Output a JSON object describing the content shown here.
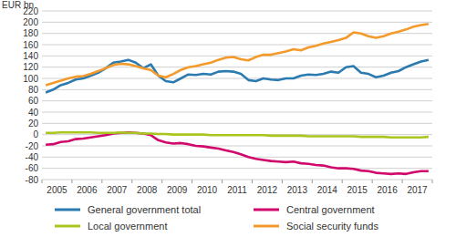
{
  "chart_data": {
    "type": "line",
    "y_label": "EUR bn",
    "categories": [
      null,
      "2005",
      null,
      null,
      null,
      "2006",
      null,
      null,
      null,
      "2007",
      null,
      null,
      null,
      "2008",
      null,
      null,
      null,
      "2009",
      null,
      null,
      null,
      "2010",
      null,
      null,
      null,
      "2011",
      null,
      null,
      null,
      "2012",
      null,
      null,
      null,
      "2013",
      null,
      null,
      null,
      "2014",
      null,
      null,
      null,
      "2015",
      null,
      null,
      null,
      "2016",
      null,
      null,
      null,
      "2017",
      null,
      null
    ],
    "series": [
      {
        "name": "General government total",
        "color": "#2b7bb0",
        "values": [
          75,
          80,
          88,
          92,
          98,
          100,
          105,
          110,
          118,
          128,
          130,
          133,
          128,
          118,
          125,
          105,
          95,
          93,
          100,
          107,
          106,
          108,
          107,
          112,
          113,
          112,
          108,
          97,
          95,
          100,
          98,
          97,
          100,
          100,
          105,
          107,
          106,
          108,
          112,
          110,
          120,
          122,
          110,
          108,
          102,
          105,
          110,
          113,
          120,
          125,
          130,
          133
        ]
      },
      {
        "name": "Central government",
        "color": "#d1086b",
        "values": [
          -18,
          -17,
          -13,
          -12,
          -8,
          -7,
          -5,
          -3,
          -1,
          2,
          3,
          4,
          3,
          2,
          -1,
          -10,
          -14,
          -16,
          -15,
          -17,
          -20,
          -21,
          -23,
          -25,
          -28,
          -31,
          -35,
          -40,
          -43,
          -45,
          -47,
          -48,
          -49,
          -48,
          -51,
          -52,
          -54,
          -55,
          -58,
          -60,
          -60,
          -61,
          -64,
          -65,
          -68,
          -69,
          -70,
          -69,
          -70,
          -67,
          -65,
          -65
        ]
      },
      {
        "name": "Local government",
        "color": "#a9c61f",
        "values": [
          3,
          3,
          4,
          4,
          4,
          4,
          4,
          3,
          3,
          3,
          4,
          3,
          3,
          2,
          2,
          1,
          1,
          0,
          0,
          0,
          0,
          0,
          -1,
          -1,
          -1,
          -1,
          -1,
          -1,
          -1,
          -1,
          -2,
          -2,
          -2,
          -2,
          -2,
          -3,
          -3,
          -3,
          -3,
          -3,
          -3,
          -3,
          -4,
          -4,
          -4,
          -4,
          -5,
          -5,
          -5,
          -5,
          -5,
          -4
        ]
      },
      {
        "name": "Social security funds",
        "color": "#f39a2b",
        "values": [
          88,
          92,
          96,
          100,
          103,
          104,
          108,
          113,
          118,
          124,
          126,
          125,
          122,
          118,
          115,
          105,
          102,
          108,
          115,
          120,
          122,
          125,
          128,
          133,
          137,
          138,
          134,
          132,
          138,
          142,
          142,
          145,
          148,
          152,
          150,
          155,
          158,
          162,
          165,
          168,
          172,
          182,
          180,
          175,
          172,
          175,
          180,
          183,
          187,
          192,
          195,
          197
        ]
      }
    ],
    "ylim": [
      -80,
      220
    ],
    "yticks": [
      -80,
      -60,
      -40,
      -20,
      0,
      20,
      40,
      60,
      80,
      100,
      120,
      140,
      160,
      180,
      200,
      220
    ],
    "grid": true,
    "legend": "bottom"
  }
}
